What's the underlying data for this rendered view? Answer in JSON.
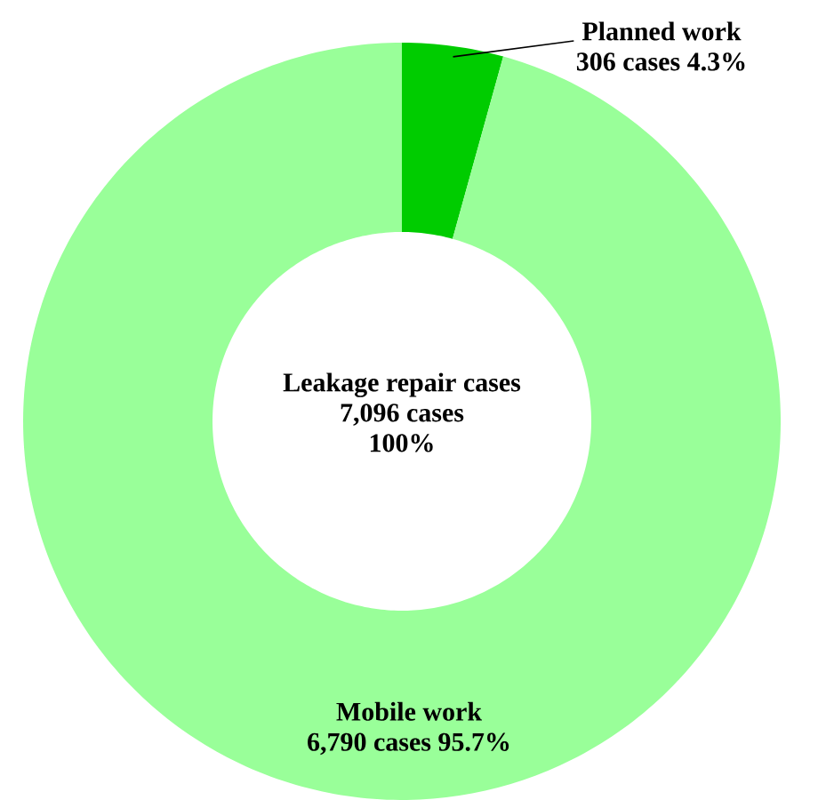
{
  "chart_data": {
    "type": "donut",
    "categories": [
      "Planned work",
      "Mobile work"
    ],
    "values": [
      306,
      6790
    ],
    "colors": [
      "#00cc00",
      "#99ff99"
    ],
    "value_labels": [
      "306 cases    4.3%",
      "6,790  cases    95.7%"
    ],
    "annotations": [
      "Leakage repair cases",
      "7,096  cases",
      "100%"
    ]
  }
}
